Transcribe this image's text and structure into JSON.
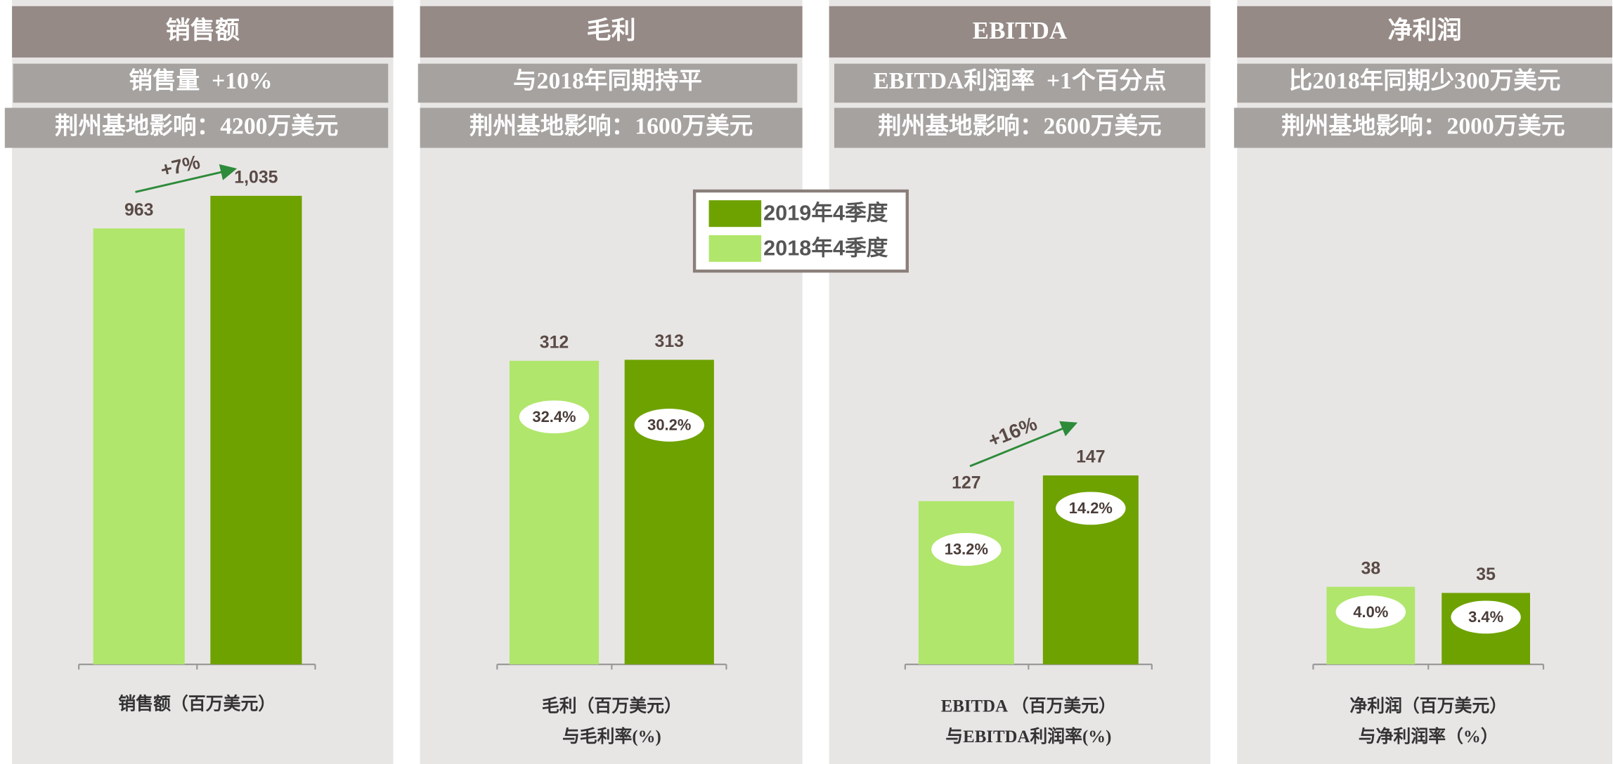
{
  "legend": [
    {
      "name": "2019年4季度",
      "color": "#6ea200"
    },
    {
      "name": "2018年4季度",
      "color": "#b0e66b"
    }
  ],
  "chart_data": [
    {
      "type": "bar",
      "title": "销售额",
      "subtitles": [
        "销售量  +10%",
        "荆州基地影响：4200万美元"
      ],
      "values": [
        963,
        1035
      ],
      "value_labels": [
        "963",
        "1,035"
      ],
      "ylim": [
        0,
        1150
      ],
      "annotation": "+7%",
      "xlabel": [
        "销售额（百万美元）"
      ]
    },
    {
      "type": "bar",
      "title": "毛利",
      "subtitles": [
        "与2018年同期持平",
        "荆州基地影响：1600万美元"
      ],
      "values": [
        312,
        313
      ],
      "ylim": [
        0,
        535
      ],
      "margins": [
        32.4,
        30.2
      ],
      "margin_labels": [
        "32.4%",
        "30.2%"
      ],
      "xlabel": [
        "毛利（百万美元）",
        "与毛利率(%)"
      ]
    },
    {
      "type": "bar",
      "title": "EBITDA",
      "subtitles": [
        "EBITDA利润率  +1个百分点",
        "荆州基地影响：2600万美元"
      ],
      "values": [
        127,
        147
      ],
      "ylim": [
        0,
        405
      ],
      "margins": [
        13.2,
        14.2
      ],
      "margin_labels": [
        "13.2%",
        "14.2%"
      ],
      "annotation": "+16%",
      "xlabel": [
        "EBITDA （百万美元）",
        "与EBITDA利润率(%)"
      ]
    },
    {
      "type": "bar",
      "title": "净利润",
      "subtitles": [
        "比2018年同期少300万美元",
        "荆州基地影响：2000万美元"
      ],
      "values": [
        38,
        35
      ],
      "ylim": [
        0,
        255
      ],
      "margins": [
        4.0,
        3.4
      ],
      "margin_labels": [
        "4.0%",
        "3.4%"
      ],
      "xlabel": [
        "净利润（百万美元）",
        "与净利润率（%）"
      ]
    }
  ]
}
